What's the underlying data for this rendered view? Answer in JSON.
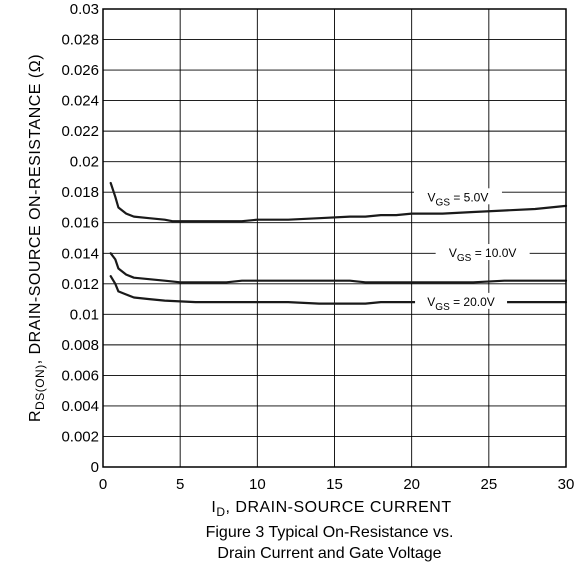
{
  "chart_data": {
    "type": "line",
    "xlabel": {
      "main": "I",
      "sub": "D",
      "rest": ", DRAIN-SOURCE CURRENT"
    },
    "ylabel": {
      "main": "R",
      "sub": "DS(ON)",
      "rest": ", DRAIN-SOURCE ON-RESISTANCE (Ω)"
    },
    "caption": [
      "Figure 3 Typical On-Resistance vs.",
      "Drain Current and Gate Voltage"
    ],
    "xlim": [
      0,
      30
    ],
    "ylim": [
      0,
      0.03
    ],
    "x_ticks": [
      0,
      5,
      10,
      15,
      20,
      25,
      30
    ],
    "x_tick_labels": [
      "0",
      "5",
      "10",
      "15",
      "20",
      "25",
      "30"
    ],
    "y_ticks": [
      0,
      0.002,
      0.004,
      0.006,
      0.008,
      0.01,
      0.012,
      0.014,
      0.016,
      0.018,
      0.02,
      0.022,
      0.024,
      0.026,
      0.028,
      0.03
    ],
    "y_tick_labels": [
      "0",
      "0.002",
      "0.004",
      "0.006",
      "0.008",
      "0.01",
      "0.012",
      "0.014",
      "0.016",
      "0.018",
      "0.02",
      "0.022",
      "0.024",
      "0.026",
      "0.028",
      "0.03"
    ],
    "grid": true,
    "series": [
      {
        "name": "VGS = 5.0V",
        "label": {
          "main": "V",
          "sub": "GS",
          "rest": " = 5.0V"
        },
        "x": [
          0.5,
          0.8,
          1.0,
          1.5,
          2,
          3,
          4,
          4.5,
          6,
          8,
          9,
          10,
          12,
          14,
          16,
          17,
          18,
          19,
          20,
          22,
          24,
          26,
          28,
          30
        ],
        "y": [
          0.0186,
          0.0177,
          0.017,
          0.0166,
          0.0164,
          0.0163,
          0.0162,
          0.0161,
          0.0161,
          0.0161,
          0.0161,
          0.0162,
          0.0162,
          0.0163,
          0.0164,
          0.0164,
          0.0165,
          0.0165,
          0.0166,
          0.0166,
          0.0167,
          0.0168,
          0.0169,
          0.0171
        ]
      },
      {
        "name": "VGS = 10.0V",
        "label": {
          "main": "V",
          "sub": "GS",
          "rest": " = 10.0V"
        },
        "x": [
          0.5,
          0.8,
          1.0,
          1.5,
          2,
          3,
          4,
          5,
          8,
          9,
          12,
          16,
          17,
          20,
          24,
          26,
          28,
          30
        ],
        "y": [
          0.014,
          0.0136,
          0.013,
          0.0126,
          0.0124,
          0.0123,
          0.0122,
          0.0121,
          0.0121,
          0.0122,
          0.0122,
          0.0122,
          0.0121,
          0.0121,
          0.0121,
          0.0122,
          0.0122,
          0.0122
        ]
      },
      {
        "name": "VGS = 20.0V",
        "label": {
          "main": "V",
          "sub": "GS",
          "rest": " = 20.0V"
        },
        "x": [
          0.5,
          0.8,
          1.0,
          1.5,
          2,
          3,
          4,
          6,
          7,
          8,
          9,
          10,
          12,
          14,
          16,
          17,
          18,
          20,
          24,
          30
        ],
        "y": [
          0.0125,
          0.012,
          0.0115,
          0.0113,
          0.0111,
          0.011,
          0.0109,
          0.0108,
          0.0108,
          0.0108,
          0.0108,
          0.0108,
          0.0108,
          0.0107,
          0.0107,
          0.0107,
          0.0108,
          0.0108,
          0.0108,
          0.0108
        ]
      }
    ]
  }
}
